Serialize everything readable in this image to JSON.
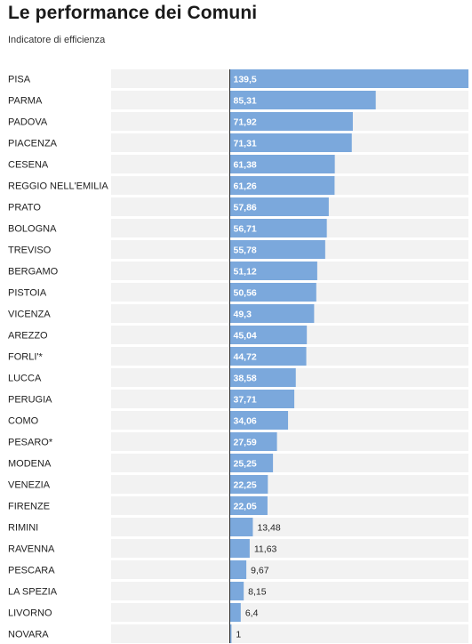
{
  "chart_data": {
    "type": "bar",
    "orientation": "horizontal",
    "title": "Le performance dei Comuni",
    "subtitle": "Indicatore di efficienza",
    "xlim": [
      0,
      139.5
    ],
    "colors": {
      "bar": "#7ba8dc",
      "track": "#f2f2f2",
      "baseline": "#2a2a2a",
      "label_inside": "#ffffff",
      "label_outside": "#222222"
    },
    "categories": [
      "PISA",
      "PARMA",
      "PADOVA",
      "PIACENZA",
      "CESENA",
      "REGGIO NELL'EMILIA",
      "PRATO",
      "BOLOGNA",
      "TREVISO",
      "BERGAMO",
      "PISTOIA",
      "VICENZA",
      "AREZZO",
      "FORLI'*",
      "LUCCA",
      "PERUGIA",
      "COMO",
      "PESARO*",
      "MODENA",
      "VENEZIA",
      "FIRENZE",
      "RIMINI",
      "RAVENNA",
      "PESCARA",
      "LA SPEZIA",
      "LIVORNO",
      "NOVARA"
    ],
    "values": [
      139.5,
      85.31,
      71.92,
      71.31,
      61.38,
      61.26,
      57.86,
      56.71,
      55.78,
      51.12,
      50.56,
      49.3,
      45.04,
      44.72,
      38.58,
      37.71,
      34.06,
      27.59,
      25.25,
      22.25,
      22.05,
      13.48,
      11.63,
      9.67,
      8.15,
      6.4,
      1
    ],
    "value_labels": [
      "139,5",
      "85,31",
      "71,92",
      "71,31",
      "61,38",
      "61,26",
      "57,86",
      "56,71",
      "55,78",
      "51,12",
      "50,56",
      "49,3",
      "45,04",
      "44,72",
      "38,58",
      "37,71",
      "34,06",
      "27,59",
      "25,25",
      "22,25",
      "22,05",
      "13,48",
      "11,63",
      "9,67",
      "8,15",
      "6,4",
      "1"
    ]
  }
}
